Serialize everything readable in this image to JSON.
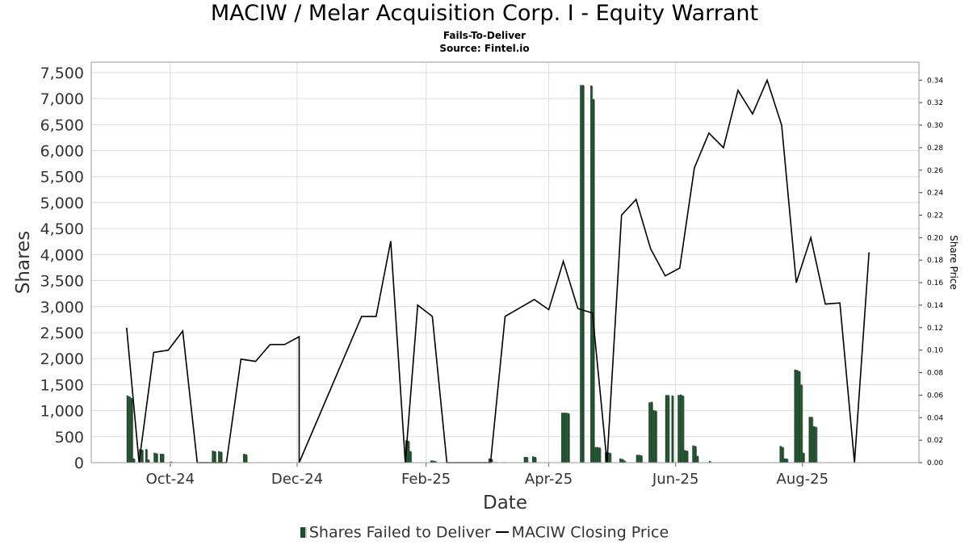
{
  "title": "MACIW / Melar Acquisition Corp. I - Equity Warrant",
  "subtitle": "Fails-To-Deliver",
  "source": "Source: Fintel.io",
  "colors": {
    "bars": "#1e4d2b",
    "bar_shadow": "#8a8a8a",
    "line": "#000000",
    "grid": "#dddddd"
  },
  "legend": {
    "bars_label": "Shares Failed to Deliver",
    "line_label": "MACIW Closing Price"
  },
  "chart_data": {
    "type": "bar",
    "title": "MACIW / Melar Acquisition Corp. I - Equity Warrant",
    "xlabel": "Date",
    "ylabel": "Shares",
    "y2label": "Share Price",
    "xlim": [
      "2024-08-24",
      "2025-09-26"
    ],
    "ylim": [
      0,
      7700
    ],
    "y2lim": [
      0,
      0.356
    ],
    "x_ticks": [
      "2024-10-01",
      "2024-12-01",
      "2025-02-01",
      "2025-04-01",
      "2025-06-01",
      "2025-08-01"
    ],
    "x_tick_labels": [
      "Oct-24",
      "Dec-24",
      "Feb-25",
      "Apr-25",
      "Jun-25",
      "Aug-25"
    ],
    "y_ticks": [
      0,
      500,
      1000,
      1500,
      2000,
      2500,
      3000,
      3500,
      4000,
      4500,
      5000,
      5500,
      6000,
      6500,
      7000,
      7500
    ],
    "y_tick_labels": [
      "0",
      "500",
      "1,000",
      "1,500",
      "2,000",
      "2,500",
      "3,000",
      "3,500",
      "4,000",
      "4,500",
      "5,000",
      "5,500",
      "6,000",
      "6,500",
      "7,000",
      "7,500"
    ],
    "y2_ticks": [
      0,
      0.02,
      0.04,
      0.06,
      0.08,
      0.1,
      0.12,
      0.14,
      0.16,
      0.18,
      0.2,
      0.22,
      0.24,
      0.26,
      0.28,
      0.3,
      0.32,
      0.34
    ],
    "y2_tick_labels": [
      "0.00",
      "0.02",
      "0.04",
      "0.06",
      "0.08",
      "0.10",
      "0.12",
      "0.14",
      "0.16",
      "0.18",
      "0.20",
      "0.22",
      "0.24",
      "0.26",
      "0.28",
      "0.30",
      "0.32",
      "0.34"
    ],
    "grid": true,
    "legend_position": "bottom",
    "series": [
      {
        "name": "Shares Failed to Deliver",
        "type": "bar",
        "axis": "left",
        "points": [
          [
            "2024-09-10",
            1290
          ],
          [
            "2024-09-11",
            1270
          ],
          [
            "2024-09-12",
            1240
          ],
          [
            "2024-09-13",
            80
          ],
          [
            "2024-09-16",
            260
          ],
          [
            "2024-09-17",
            250
          ],
          [
            "2024-09-19",
            260
          ],
          [
            "2024-09-20",
            60
          ],
          [
            "2024-09-23",
            190
          ],
          [
            "2024-09-24",
            180
          ],
          [
            "2024-09-26",
            170
          ],
          [
            "2024-09-27",
            170
          ],
          [
            "2024-10-01",
            20
          ],
          [
            "2024-10-16",
            10
          ],
          [
            "2024-10-17",
            10
          ],
          [
            "2024-10-18",
            10
          ],
          [
            "2024-10-21",
            230
          ],
          [
            "2024-10-22",
            220
          ],
          [
            "2024-10-24",
            220
          ],
          [
            "2024-10-25",
            210
          ],
          [
            "2024-11-05",
            170
          ],
          [
            "2024-11-06",
            160
          ],
          [
            "2025-01-22",
            430
          ],
          [
            "2025-01-23",
            420
          ],
          [
            "2025-01-24",
            220
          ],
          [
            "2025-02-03",
            40
          ],
          [
            "2025-02-04",
            40
          ],
          [
            "2025-02-05",
            30
          ],
          [
            "2025-02-20",
            10
          ],
          [
            "2025-02-24",
            10
          ],
          [
            "2025-03-03",
            80
          ],
          [
            "2025-03-04",
            70
          ],
          [
            "2025-03-06",
            10
          ],
          [
            "2025-03-10",
            10
          ],
          [
            "2025-03-20",
            110
          ],
          [
            "2025-03-21",
            110
          ],
          [
            "2025-03-24",
            120
          ],
          [
            "2025-03-25",
            110
          ],
          [
            "2025-04-07",
            960
          ],
          [
            "2025-04-08",
            960
          ],
          [
            "2025-04-09",
            960
          ],
          [
            "2025-04-10",
            950
          ],
          [
            "2025-04-16",
            7260
          ],
          [
            "2025-04-17",
            7260
          ],
          [
            "2025-04-21",
            7250
          ],
          [
            "2025-04-22",
            6990
          ],
          [
            "2025-04-23",
            300
          ],
          [
            "2025-04-24",
            300
          ],
          [
            "2025-04-25",
            290
          ],
          [
            "2025-04-28",
            200
          ],
          [
            "2025-04-29",
            200
          ],
          [
            "2025-04-30",
            190
          ],
          [
            "2025-05-05",
            80
          ],
          [
            "2025-05-06",
            70
          ],
          [
            "2025-05-07",
            40
          ],
          [
            "2025-05-13",
            150
          ],
          [
            "2025-05-14",
            150
          ],
          [
            "2025-05-15",
            140
          ],
          [
            "2025-05-19",
            1160
          ],
          [
            "2025-05-20",
            1170
          ],
          [
            "2025-05-21",
            1010
          ],
          [
            "2025-05-22",
            1000
          ],
          [
            "2025-05-27",
            1300
          ],
          [
            "2025-05-28",
            1300
          ],
          [
            "2025-05-30",
            1290
          ],
          [
            "2025-06-02",
            1300
          ],
          [
            "2025-06-03",
            1310
          ],
          [
            "2025-06-04",
            1290
          ],
          [
            "2025-06-05",
            240
          ],
          [
            "2025-06-06",
            230
          ],
          [
            "2025-06-09",
            330
          ],
          [
            "2025-06-10",
            320
          ],
          [
            "2025-06-11",
            130
          ],
          [
            "2025-06-17",
            30
          ],
          [
            "2025-07-21",
            320
          ],
          [
            "2025-07-22",
            300
          ],
          [
            "2025-07-23",
            80
          ],
          [
            "2025-07-24",
            80
          ],
          [
            "2025-07-28",
            1790
          ],
          [
            "2025-07-29",
            1780
          ],
          [
            "2025-07-30",
            1760
          ],
          [
            "2025-07-31",
            1500
          ],
          [
            "2025-08-01",
            190
          ],
          [
            "2025-08-04",
            880
          ],
          [
            "2025-08-05",
            880
          ],
          [
            "2025-08-06",
            700
          ],
          [
            "2025-08-07",
            690
          ]
        ]
      },
      {
        "name": "MACIW Closing Price",
        "type": "line",
        "axis": "right",
        "points": [
          [
            "2024-09-10",
            0.12
          ],
          [
            "2024-09-16",
            0.0
          ],
          [
            "2024-09-23",
            0.098
          ],
          [
            "2024-09-30",
            0.1
          ],
          [
            "2024-10-07",
            0.117
          ],
          [
            "2024-10-14",
            0.0
          ],
          [
            "2024-10-21",
            0.0
          ],
          [
            "2024-10-28",
            0.0
          ],
          [
            "2024-11-04",
            0.092
          ],
          [
            "2024-11-11",
            0.09
          ],
          [
            "2024-11-18",
            0.105
          ],
          [
            "2024-11-25",
            0.105
          ],
          [
            "2024-12-02",
            0.112
          ],
          [
            "2024-12-02",
            0.0
          ],
          [
            "2025-01-01",
            0.13
          ],
          [
            "2025-01-08",
            0.13
          ],
          [
            "2025-01-15",
            0.197
          ],
          [
            "2025-01-22",
            0.0
          ],
          [
            "2025-01-28",
            0.14
          ],
          [
            "2025-02-04",
            0.13
          ],
          [
            "2025-02-11",
            0.0
          ],
          [
            "2025-02-18",
            0.0
          ],
          [
            "2025-02-25",
            0.0
          ],
          [
            "2025-03-04",
            0.0
          ],
          [
            "2025-03-11",
            0.13
          ],
          [
            "2025-03-25",
            0.145
          ],
          [
            "2025-04-01",
            0.136
          ],
          [
            "2025-04-08",
            0.179
          ],
          [
            "2025-04-15",
            0.137
          ],
          [
            "2025-04-22",
            0.133
          ],
          [
            "2025-04-29",
            0.0
          ],
          [
            "2025-05-06",
            0.22
          ],
          [
            "2025-05-13",
            0.234
          ],
          [
            "2025-05-20",
            0.19
          ],
          [
            "2025-05-27",
            0.166
          ],
          [
            "2025-06-03",
            0.173
          ],
          [
            "2025-06-10",
            0.262
          ],
          [
            "2025-06-17",
            0.293
          ],
          [
            "2025-06-24",
            0.28
          ],
          [
            "2025-07-01",
            0.331
          ],
          [
            "2025-07-08",
            0.31
          ],
          [
            "2025-07-15",
            0.34
          ],
          [
            "2025-07-22",
            0.3
          ],
          [
            "2025-07-29",
            0.16
          ],
          [
            "2025-08-05",
            0.2
          ],
          [
            "2025-08-12",
            0.141
          ],
          [
            "2025-08-19",
            0.142
          ],
          [
            "2025-08-26",
            0.0
          ],
          [
            "2025-09-02",
            0.187
          ]
        ]
      }
    ]
  }
}
